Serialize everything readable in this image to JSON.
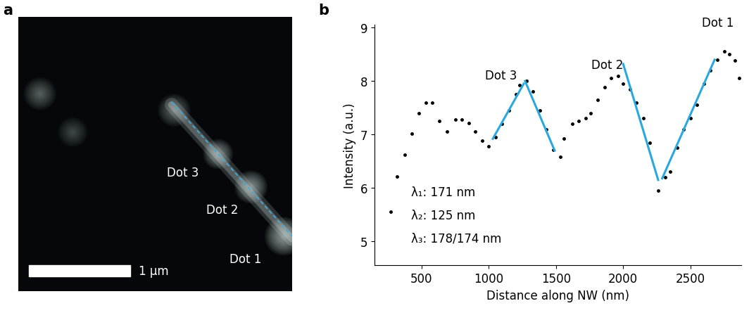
{
  "panel_labels": [
    "a",
    "b"
  ],
  "image": {
    "dot_labels": [
      "Dot 3",
      "Dot 2",
      "Dot 1"
    ],
    "scale_bar": "1 μm"
  },
  "chart_data": {
    "type": "scatter",
    "x_label": "Distance along NW (nm)",
    "y_label": "Intensity (a.u.)",
    "xlim": [
      150,
      2880
    ],
    "ylim": [
      4.55,
      9.05
    ],
    "xticks": [
      500,
      1000,
      1500,
      2000,
      2500
    ],
    "yticks": [
      5,
      6,
      7,
      8,
      9
    ],
    "grid": false,
    "color": "#000000",
    "marker": "o",
    "x": [
      270,
      320,
      375,
      430,
      480,
      530,
      580,
      630,
      690,
      750,
      800,
      850,
      900,
      950,
      1000,
      1050,
      1100,
      1150,
      1200,
      1230,
      1280,
      1330,
      1380,
      1430,
      1480,
      1530,
      1560,
      1620,
      1670,
      1720,
      1760,
      1810,
      1860,
      1910,
      1960,
      2000,
      2050,
      2100,
      2150,
      2200,
      2260,
      2310,
      2350,
      2400,
      2450,
      2500,
      2550,
      2600,
      2650,
      2700,
      2750,
      2790,
      2830,
      2860
    ],
    "values": [
      5.55,
      6.22,
      6.62,
      7.02,
      7.4,
      7.6,
      7.6,
      7.25,
      7.05,
      7.28,
      7.28,
      7.22,
      7.05,
      6.88,
      6.78,
      6.95,
      7.2,
      7.45,
      7.75,
      7.92,
      8.0,
      7.8,
      7.45,
      7.1,
      6.72,
      6.58,
      6.92,
      7.2,
      7.25,
      7.3,
      7.4,
      7.65,
      7.88,
      8.05,
      8.1,
      7.95,
      7.85,
      7.6,
      7.3,
      6.85,
      5.95,
      6.2,
      6.3,
      6.75,
      7.1,
      7.3,
      7.55,
      7.95,
      8.2,
      8.4,
      8.55,
      8.5,
      8.38,
      8.05
    ],
    "fits": {
      "color": "#29a8e0",
      "line_style": "solid",
      "segments": [
        {
          "x": [
            1030,
            1260
          ],
          "y": [
            6.92,
            7.95
          ]
        },
        {
          "x": [
            1270,
            1490
          ],
          "y": [
            8.0,
            6.7
          ]
        },
        {
          "x": [
            2000,
            2260
          ],
          "y": [
            8.32,
            6.15
          ]
        },
        {
          "x": [
            2290,
            2680
          ],
          "y": [
            6.18,
            8.4
          ]
        }
      ]
    },
    "point_labels": [
      "Dot 3",
      "Dot 2",
      "Dot 1"
    ],
    "annotations": [
      "λ₁: 171 nm",
      "λ₂: 125 nm",
      "λ₃: 178/174 nm"
    ]
  }
}
